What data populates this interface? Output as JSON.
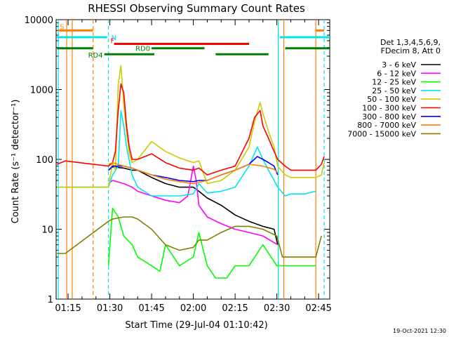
{
  "chart_data": {
    "type": "line",
    "title": "RHESSI Observing Summary Count Rates",
    "xlabel": "Start Time (29-Jul-04 01:10:42)",
    "ylabel": "Count Rate (s⁻¹ detector⁻¹)",
    "timestamp": "19-Oct-2021 12:30",
    "legend_header": [
      "Det 1,3,4,5,6,9,",
      "FDecim 8, Att 0"
    ],
    "x_unit": "minutes after 01:00",
    "xlim": [
      10.7,
      109
    ],
    "ylim": [
      1,
      10000
    ],
    "y_scale": "log",
    "x_ticks": [
      {
        "value": 15,
        "label": "01:15"
      },
      {
        "value": 30,
        "label": "01:30"
      },
      {
        "value": 45,
        "label": "01:45"
      },
      {
        "value": 60,
        "label": "02:00"
      },
      {
        "value": 75,
        "label": "02:15"
      },
      {
        "value": 90,
        "label": "02:30"
      },
      {
        "value": 105,
        "label": "02:45"
      }
    ],
    "y_ticks": [
      {
        "value": 1,
        "label": "1"
      },
      {
        "value": 10,
        "label": "10"
      },
      {
        "value": 100,
        "label": "100"
      },
      {
        "value": 1000,
        "label": "1000"
      },
      {
        "value": 10000,
        "label": "10000"
      }
    ],
    "state_bars": [
      {
        "label": "S",
        "color": "#ff8000",
        "y": 7000,
        "ranges": [
          [
            11.5,
            24
          ],
          [
            104,
            107
          ]
        ]
      },
      {
        "label": "N",
        "color": "#00e5ee",
        "y": 5600,
        "ranges": [
          [
            11,
            29
          ],
          [
            91,
            109
          ]
        ]
      },
      {
        "label": "F",
        "color": "#ff0000",
        "y": 4500,
        "ranges": [
          [
            31.5,
            80
          ]
        ]
      },
      {
        "label": "RD0",
        "color": "#008000",
        "y": 3900,
        "ranges": [
          [
            11,
            24
          ],
          [
            45,
            64
          ],
          [
            93,
            109
          ]
        ]
      },
      {
        "label": "RD4",
        "color": "#008000",
        "y": 3200,
        "ranges": [
          [
            28,
            46
          ],
          [
            68,
            87
          ]
        ]
      }
    ],
    "vertical_lines": [
      {
        "x": 11.5,
        "color": "#00e5ee",
        "dashed": false
      },
      {
        "x": 14.5,
        "color": "#ff8000",
        "dashed": false
      },
      {
        "x": 16.5,
        "color": "#ff8000",
        "dashed": false
      },
      {
        "x": 24,
        "color": "#ff8000",
        "dashed": true
      },
      {
        "x": 29.5,
        "color": "#00e5ee",
        "dashed": true
      },
      {
        "x": 90.5,
        "color": "#00e5ee",
        "dashed": false
      },
      {
        "x": 92.5,
        "color": "#ff8000",
        "dashed": false
      },
      {
        "x": 104,
        "color": "#ff8000",
        "dashed": false
      },
      {
        "x": 107,
        "color": "#00e5ee",
        "dashed": true
      }
    ],
    "series": [
      {
        "name": "3 - 6 keV",
        "color": "#000000",
        "x": [
          29.5,
          31,
          35,
          38,
          40,
          45,
          50,
          55,
          60,
          62,
          65,
          70,
          75,
          80,
          85,
          89,
          90.3
        ],
        "values": [
          70,
          78,
          75,
          70,
          70,
          55,
          45,
          40,
          40,
          35,
          28,
          22,
          16,
          13,
          11,
          10,
          6
        ]
      },
      {
        "name": "6 - 12 keV",
        "color": "#ff00ff",
        "x": [
          29.5,
          31,
          35,
          38,
          40,
          45,
          50,
          55,
          58,
          60,
          61,
          62,
          65,
          70,
          75,
          80,
          85,
          90.3
        ],
        "values": [
          45,
          50,
          45,
          40,
          35,
          30,
          26,
          24,
          30,
          80,
          50,
          22,
          15,
          12,
          10,
          9,
          8,
          6
        ]
      },
      {
        "name": "12 - 25 keV",
        "color": "#00ff00",
        "x": [
          29.5,
          31,
          33,
          35,
          38,
          40,
          45,
          48,
          50,
          55,
          60,
          62,
          65,
          68,
          72,
          75,
          80,
          85,
          90,
          93,
          95,
          100,
          104
        ],
        "values": [
          3,
          20,
          15,
          8,
          6,
          4,
          3,
          2.5,
          6,
          3,
          4,
          9,
          3,
          2,
          2,
          3,
          3,
          6,
          3,
          3,
          3,
          3,
          3
        ]
      },
      {
        "name": "25 - 50 keV",
        "color": "#00e5ee",
        "x": [
          11,
          29.5,
          31,
          33,
          34,
          35,
          36,
          38,
          40,
          45,
          50,
          55,
          60,
          62,
          65,
          70,
          75,
          80,
          83,
          85,
          87,
          89,
          90.3,
          93,
          95,
          100,
          104
        ],
        "values": [
          40,
          40,
          60,
          80,
          500,
          300,
          150,
          60,
          40,
          30,
          30,
          30,
          32,
          45,
          33,
          35,
          40,
          80,
          150,
          100,
          70,
          50,
          40,
          30,
          32,
          32,
          35
        ]
      },
      {
        "name": "50 - 100 keV",
        "color": "#cccc00",
        "x": [
          11,
          29.5,
          31,
          32,
          33,
          34,
          35,
          36,
          37,
          38,
          40,
          45,
          50,
          55,
          60,
          62,
          65,
          70,
          75,
          80,
          82,
          84,
          85,
          87,
          89,
          90.3,
          93,
          95,
          100,
          104,
          106,
          107
        ],
        "values": [
          40,
          40,
          90,
          70,
          1200,
          2200,
          600,
          250,
          120,
          90,
          100,
          180,
          130,
          105,
          90,
          95,
          45,
          50,
          70,
          150,
          350,
          650,
          450,
          250,
          150,
          80,
          60,
          55,
          55,
          55,
          60,
          90
        ]
      },
      {
        "name": "100 - 300 keV",
        "color": "#ff0000",
        "x": [
          11,
          14,
          29.5,
          31,
          32,
          33,
          34,
          35,
          36,
          37,
          38,
          40,
          45,
          50,
          55,
          60,
          62,
          65,
          70,
          75,
          80,
          82,
          84,
          85,
          87,
          89,
          90.3,
          93,
          95,
          100,
          104,
          106,
          107
        ],
        "values": [
          85,
          95,
          80,
          90,
          130,
          500,
          1200,
          900,
          300,
          150,
          100,
          100,
          120,
          90,
          75,
          70,
          75,
          60,
          70,
          80,
          200,
          400,
          500,
          300,
          200,
          130,
          100,
          80,
          70,
          70,
          70,
          85,
          110
        ]
      },
      {
        "name": "300 - 800 keV",
        "color": "#0000ff",
        "x": [
          29.5,
          31,
          35,
          38,
          40,
          45,
          50,
          55,
          60,
          62,
          65,
          70,
          75,
          80,
          83,
          85,
          87,
          89,
          90.3
        ],
        "values": [
          70,
          80,
          80,
          75,
          70,
          60,
          55,
          50,
          48,
          50,
          50,
          60,
          70,
          85,
          110,
          100,
          90,
          80,
          60
        ]
      },
      {
        "name": "800 - 7000 keV",
        "color": "#ff8000",
        "x": [
          29.5,
          31,
          35,
          38,
          40,
          45,
          50,
          55,
          60,
          62,
          65,
          70,
          75,
          80,
          85,
          89,
          90.3
        ],
        "values": [
          85,
          90,
          80,
          75,
          70,
          60,
          52,
          48,
          45,
          47,
          50,
          60,
          70,
          85,
          80,
          72,
          65
        ]
      },
      {
        "name": "7000 - 15000 keV",
        "color": "#808000",
        "x": [
          11,
          14,
          29.5,
          31,
          35,
          38,
          40,
          45,
          50,
          55,
          60,
          62,
          65,
          70,
          75,
          80,
          85,
          90,
          92,
          95,
          100,
          104,
          106
        ],
        "values": [
          4.5,
          4.5,
          13,
          14,
          15,
          15,
          14,
          10,
          6,
          5,
          5.5,
          7,
          7,
          9,
          11,
          11,
          10,
          8,
          4,
          4,
          4,
          4,
          8
        ]
      }
    ]
  }
}
